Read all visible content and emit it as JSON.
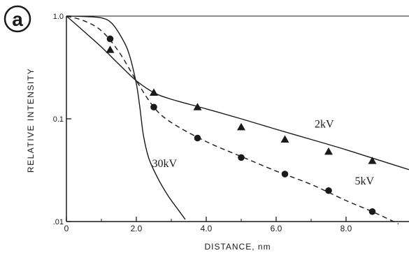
{
  "panel_label": "a",
  "chart_data": {
    "type": "line",
    "xlabel": "DISTANCE, nm",
    "ylabel": "RELATIVE INTENSITY",
    "xlim": [
      0,
      9.8
    ],
    "ylim": [
      0.01,
      1.0
    ],
    "y_scale": "log",
    "x_ticks": [
      {
        "value": 0,
        "label": "0"
      },
      {
        "value": 2,
        "label": "2.0"
      },
      {
        "value": 4,
        "label": "4.0"
      },
      {
        "value": 6,
        "label": "6.0"
      },
      {
        "value": 8,
        "label": "8.0"
      }
    ],
    "y_ticks": [
      {
        "value": 1.0,
        "label": "1.0"
      },
      {
        "value": 0.1,
        "label": "0.1"
      },
      {
        "value": 0.01,
        "label": ".01"
      }
    ],
    "grid": false,
    "series": [
      {
        "name": "2kV",
        "line_style": "solid",
        "marker": "triangle",
        "curve": [
          [
            0,
            1.0
          ],
          [
            0.5,
            0.71
          ],
          [
            1,
            0.5
          ],
          [
            1.5,
            0.34
          ],
          [
            2,
            0.235
          ],
          [
            2.5,
            0.18
          ],
          [
            3,
            0.155
          ],
          [
            4,
            0.125
          ],
          [
            5,
            0.1
          ],
          [
            6,
            0.079
          ],
          [
            7,
            0.063
          ],
          [
            8,
            0.05
          ],
          [
            9,
            0.039
          ],
          [
            9.8,
            0.032
          ]
        ],
        "points": [
          [
            1.25,
            0.47
          ],
          [
            2.5,
            0.18
          ],
          [
            3.75,
            0.13
          ],
          [
            5.0,
            0.083
          ],
          [
            6.25,
            0.063
          ],
          [
            7.5,
            0.048
          ],
          [
            8.75,
            0.039
          ]
        ]
      },
      {
        "name": "5kV",
        "line_style": "dashed",
        "marker": "circle",
        "curve": [
          [
            0,
            1.0
          ],
          [
            0.5,
            0.9
          ],
          [
            1,
            0.72
          ],
          [
            1.5,
            0.45
          ],
          [
            2,
            0.235
          ],
          [
            2.5,
            0.13
          ],
          [
            3,
            0.092
          ],
          [
            4,
            0.06
          ],
          [
            5,
            0.043
          ],
          [
            6,
            0.031
          ],
          [
            7,
            0.023
          ],
          [
            8,
            0.016
          ],
          [
            8.75,
            0.0125
          ],
          [
            9.5,
            0.0095
          ]
        ],
        "points": [
          [
            1.25,
            0.6
          ],
          [
            2.5,
            0.13
          ],
          [
            3.75,
            0.065
          ],
          [
            5.0,
            0.042
          ],
          [
            6.25,
            0.029
          ],
          [
            7.5,
            0.02
          ],
          [
            8.75,
            0.0125
          ]
        ]
      },
      {
        "name": "30kV",
        "line_style": "solid",
        "marker": "none",
        "curve": [
          [
            0,
            1.0
          ],
          [
            0.5,
            0.99
          ],
          [
            1,
            0.96
          ],
          [
            1.3,
            0.85
          ],
          [
            1.6,
            0.6
          ],
          [
            1.8,
            0.42
          ],
          [
            2.0,
            0.22
          ],
          [
            2.1,
            0.13
          ],
          [
            2.2,
            0.07
          ],
          [
            2.35,
            0.042
          ],
          [
            2.6,
            0.027
          ],
          [
            2.9,
            0.018
          ],
          [
            3.2,
            0.013
          ],
          [
            3.4,
            0.0105
          ]
        ]
      }
    ],
    "annotations": [
      {
        "text": "2kV",
        "x": 7.1,
        "y": 0.082
      },
      {
        "text": "5kV",
        "x": 8.25,
        "y": 0.023
      },
      {
        "text": "30kV",
        "x": 2.45,
        "y": 0.034
      }
    ]
  }
}
